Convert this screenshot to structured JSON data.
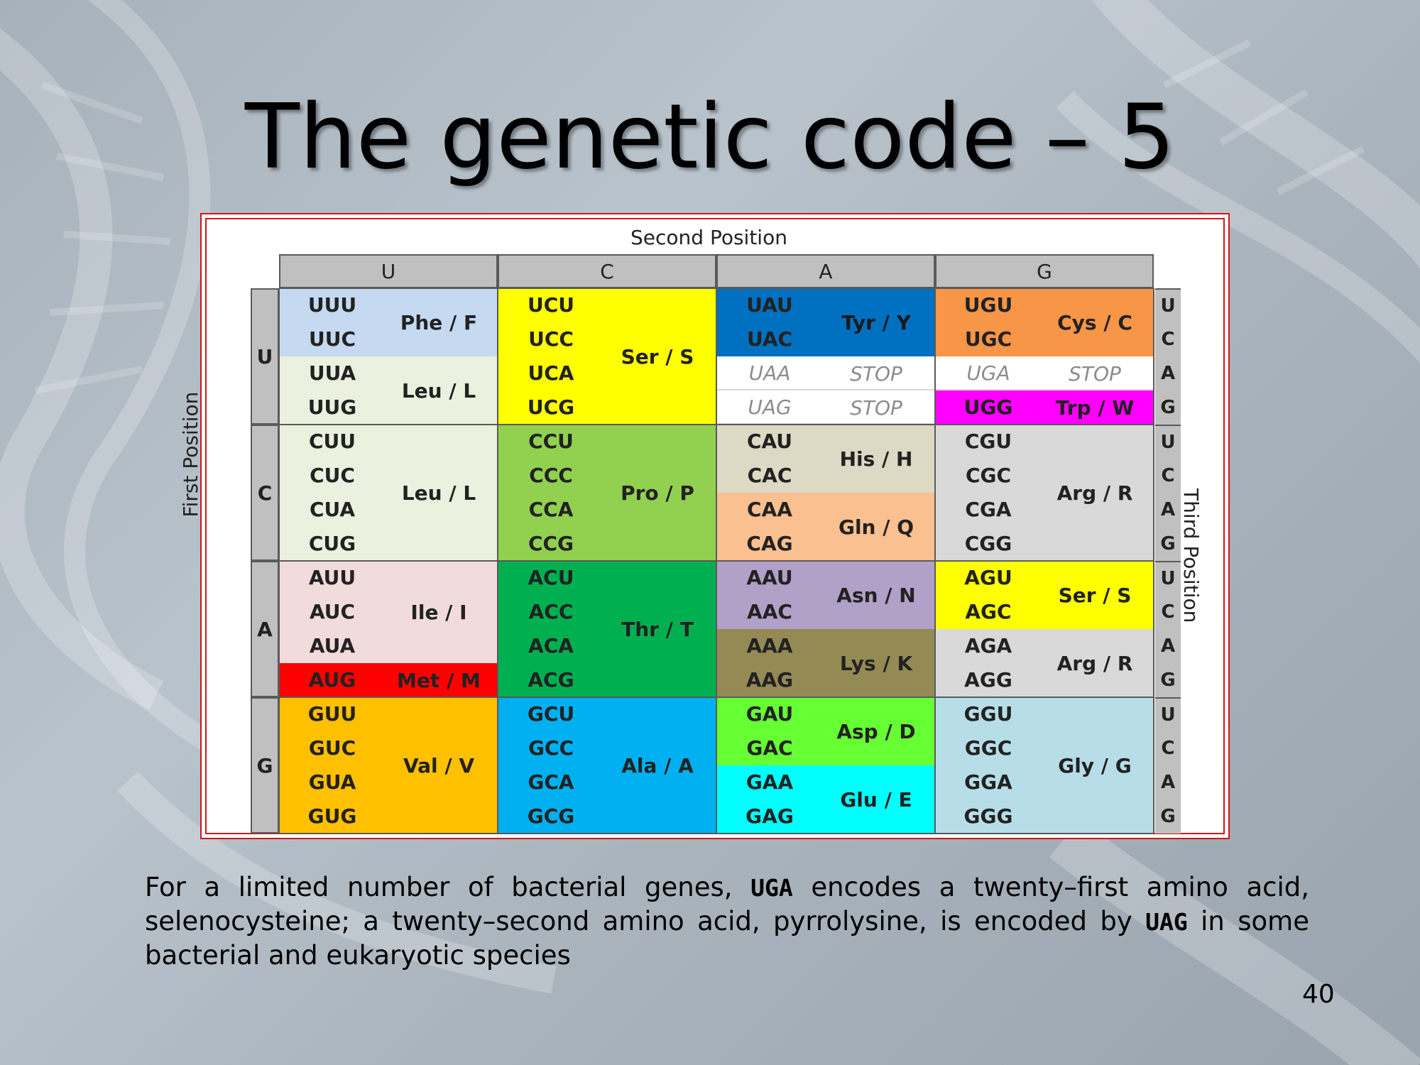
{
  "slide": {
    "title": "The genetic code – 5",
    "page_number": "40"
  },
  "table": {
    "second_position_label": "Second Position",
    "first_position_label": "First Position",
    "third_position_label": "Third Position",
    "second_headers": [
      "U",
      "C",
      "A",
      "G"
    ],
    "first_headers": [
      "U",
      "C",
      "A",
      "G"
    ],
    "third_letters": [
      "U",
      "C",
      "A",
      "G"
    ],
    "codons": [
      [
        "UUU",
        "UUC",
        "UUA",
        "UUG",
        "UCU",
        "UCC",
        "UCA",
        "UCG",
        "UAU",
        "UAC",
        "UAA",
        "UAG",
        "UGU",
        "UGC",
        "UGA",
        "UGG"
      ],
      [
        "CUU",
        "CUC",
        "CUA",
        "CUG",
        "CCU",
        "CCC",
        "CCA",
        "CCG",
        "CAU",
        "CAC",
        "CAA",
        "CAG",
        "CGU",
        "CGC",
        "CGA",
        "CGG"
      ],
      [
        "AUU",
        "AUC",
        "AUA",
        "AUG",
        "ACU",
        "ACC",
        "ACA",
        "ACG",
        "AAU",
        "AAC",
        "AAA",
        "AAG",
        "AGU",
        "AGC",
        "AGA",
        "AGG"
      ],
      [
        "GUU",
        "GUC",
        "GUA",
        "GUG",
        "GCU",
        "GCC",
        "GCA",
        "GCG",
        "GAU",
        "GAC",
        "GAA",
        "GAG",
        "GGU",
        "GGC",
        "GGA",
        "GGG"
      ]
    ],
    "amino_acids": {
      "phe": "Phe / F",
      "leu": "Leu / L",
      "ser": "Ser / S",
      "tyr": "Tyr / Y",
      "stop": "STOP",
      "cys": "Cys / C",
      "trp": "Trp / W",
      "pro": "Pro / P",
      "his": "His / H",
      "gln": "Gln / Q",
      "arg": "Arg / R",
      "ile": "Ile / I",
      "met": "Met / M",
      "thr": "Thr / T",
      "asn": "Asn / N",
      "lys": "Lys / K",
      "val": "Val / V",
      "ala": "Ala / A",
      "asp": "Asp / D",
      "glu": "Glu / E",
      "gly": "Gly / G"
    },
    "colors": {
      "phe": "#c5d9f1",
      "leu": "#ebf1de",
      "ser": "#ffff00",
      "tyr": "#0070c0",
      "stop": "#ffffff",
      "cys": "#f79646",
      "trp": "#ff00ff",
      "pro": "#92d050",
      "his": "#ddd9c4",
      "gln": "#fac090",
      "arg": "#d9d9d9",
      "ile": "#f2dcdb",
      "met": "#ff0000",
      "thr": "#00b050",
      "asn": "#b1a0c7",
      "lys": "#948a54",
      "val": "#ffc000",
      "ala": "#00b0f0",
      "asp": "#66ff33",
      "glu": "#00ffff",
      "gly": "#b7dee8",
      "frame": "#d0161b",
      "header": "#c0c0c0"
    }
  },
  "caption": {
    "part1": "For a limited number of bacterial genes, ",
    "code1": "UGA",
    "part2": " encodes a twenty–first amino acid, selenocysteine; a twenty–second amino acid, pyrrolysine, is encoded by ",
    "code2": "UAG",
    "part3": " in some bacterial and eukaryotic species"
  }
}
